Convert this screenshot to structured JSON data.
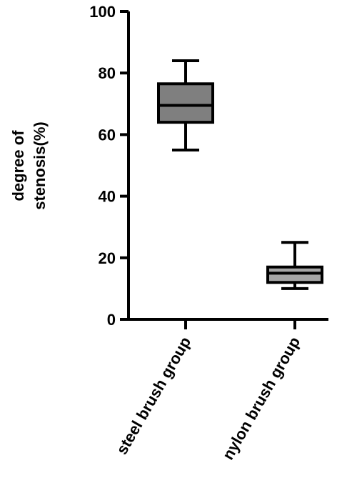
{
  "chart_data": {
    "type": "box",
    "ylabel": [
      "degree of",
      "stenosis(%)"
    ],
    "categories": [
      "steel brush group",
      "nylon brush group"
    ],
    "boxes": [
      {
        "min": 55,
        "q1": 64,
        "median": 69.5,
        "q3": 76.5,
        "max": 84,
        "color": "#7f7f7f"
      },
      {
        "min": 10,
        "q1": 12,
        "median": 15,
        "q3": 17,
        "max": 25,
        "color": "#a6a6a6"
      }
    ],
    "ylim": [
      0,
      100
    ],
    "yticks": [
      0,
      20,
      40,
      60,
      80,
      100
    ]
  }
}
